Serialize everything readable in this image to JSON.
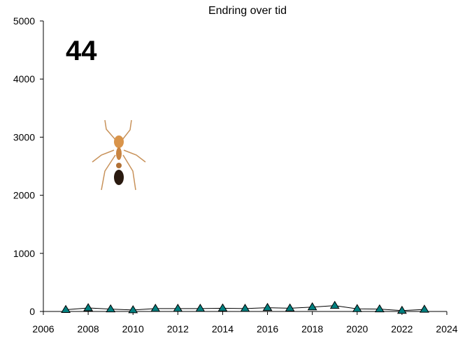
{
  "chart_data": {
    "type": "line",
    "title": "Endring over tid",
    "annotation": "44",
    "x": [
      2007,
      2008,
      2009,
      2010,
      2011,
      2012,
      2013,
      2014,
      2015,
      2016,
      2017,
      2018,
      2019,
      2020,
      2021,
      2022,
      2023
    ],
    "values": [
      30,
      60,
      40,
      25,
      50,
      50,
      50,
      55,
      50,
      65,
      55,
      75,
      100,
      45,
      40,
      15,
      35
    ],
    "color": "#008080",
    "line_color": "#000000",
    "annotation_color": "#ff0000",
    "xlim": [
      2006,
      2024
    ],
    "xticks": [
      2006,
      2008,
      2010,
      2012,
      2014,
      2016,
      2018,
      2020,
      2022,
      2024
    ],
    "ylim": [
      0,
      5000
    ],
    "yticks": [
      0,
      1000,
      2000,
      3000,
      4000,
      5000
    ],
    "grid": false
  }
}
